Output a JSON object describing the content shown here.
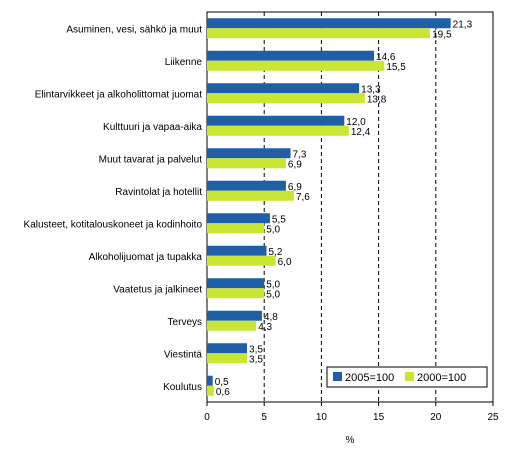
{
  "chart_data": {
    "type": "bar",
    "orientation": "horizontal",
    "categories": [
      "Asuminen, vesi, sähkö ja muut",
      "Liikenne",
      "Elintarvikkeet ja alkoholittomat juomat",
      "Kulttuuri ja vapaa-aika",
      "Muut tavarat ja palvelut",
      "Ravintolat ja hotellit",
      "Kalusteet, kotitalouskoneet ja kodinhoito",
      "Alkoholijuomat ja tupakka",
      "Vaatetus ja jalkineet",
      "Terveys",
      "Viestintä",
      "Koulutus"
    ],
    "series": [
      {
        "name": "2005=100",
        "color": "#1f5fa8",
        "values": [
          21.3,
          14.6,
          13.3,
          12.0,
          7.3,
          6.9,
          5.5,
          5.2,
          5.0,
          4.8,
          3.5,
          0.5
        ],
        "labels": [
          "21,3",
          "14,6",
          "13,3",
          "12,0",
          "7,3",
          "6,9",
          "5,5",
          "5,2",
          "5,0",
          "4,8",
          "3,5",
          "0,5"
        ]
      },
      {
        "name": "2000=100",
        "color": "#c8e632",
        "values": [
          19.5,
          15.5,
          13.8,
          12.4,
          6.9,
          7.6,
          5.0,
          6.0,
          5.0,
          4.3,
          3.5,
          0.6
        ],
        "labels": [
          "19,5",
          "15,5",
          "13,8",
          "12,4",
          "6,9",
          "7,6",
          "5,0",
          "6,0",
          "5,0",
          "4,3",
          "3,5",
          "0,6"
        ]
      }
    ],
    "xlim": [
      0,
      25
    ],
    "xticks": [
      "0",
      "5",
      "10",
      "15",
      "20",
      "25"
    ],
    "xtick_values": [
      0,
      5,
      10,
      15,
      20,
      25
    ],
    "xlabel": "%",
    "grid": "dashed vertical at 5, 10, 15, 20",
    "legend_position": "bottom-right"
  }
}
